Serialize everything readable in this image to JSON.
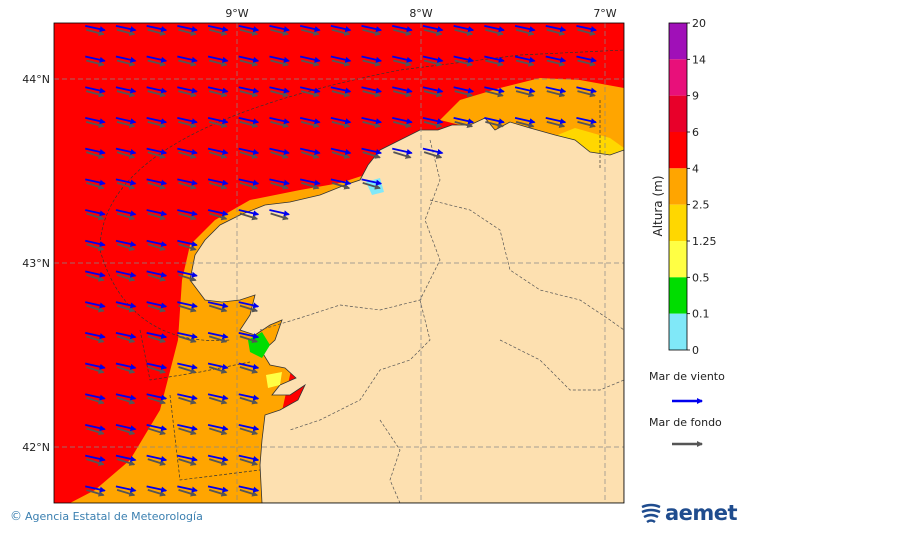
{
  "map": {
    "lon_labels": [
      "9°W",
      "8°W",
      "7°W"
    ],
    "lat_labels": [
      "44°N",
      "43°N",
      "42°N"
    ]
  },
  "legend": {
    "title": "Altura (m)",
    "bins": [
      {
        "value": "20",
        "color": "#a010b8"
      },
      {
        "value": "14",
        "color": "#e8107a"
      },
      {
        "value": "9",
        "color": "#e8002a"
      },
      {
        "value": "6",
        "color": "#ff0000"
      },
      {
        "value": "4",
        "color": "#ffa500"
      },
      {
        "value": "2.5",
        "color": "#ffd700"
      },
      {
        "value": "1.25",
        "color": "#ffff44"
      },
      {
        "value": "0.5",
        "color": "#00dd00"
      },
      {
        "value": "0.1",
        "color": "#80e8f8"
      },
      {
        "value": "0",
        "color": "#d8f8ff"
      }
    ],
    "wind_sea_label": "Mar de viento",
    "swell_label": "Mar de fondo",
    "wind_sea_color": "#0000ee",
    "swell_color": "#555555"
  },
  "colors": {
    "land": "#fde0b0",
    "sea_high": "#ff0000",
    "sea_mid": "#ffa500",
    "sea_low": "#ffd700"
  },
  "footer": {
    "copyright": "Agencia Estatal de Meteorología"
  },
  "brand": {
    "name": "aemet"
  }
}
